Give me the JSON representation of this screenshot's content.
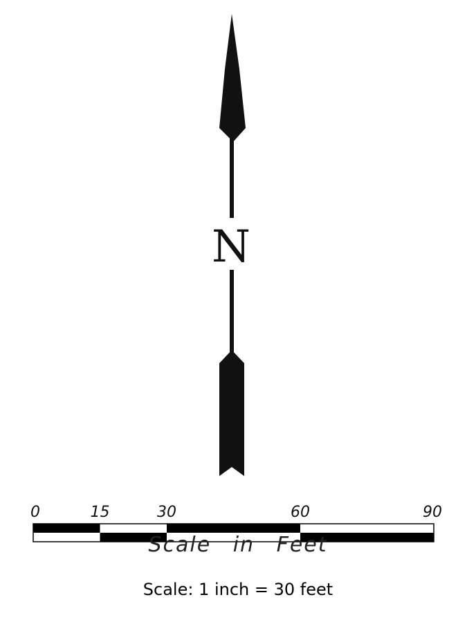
{
  "north_arrow": {
    "letter": "N",
    "icon": "north-arrow-icon",
    "color": "#111111"
  },
  "scale_bar": {
    "ticks": [
      {
        "label": "0",
        "value": 0
      },
      {
        "label": "15",
        "value": 15
      },
      {
        "label": "30",
        "value": 30
      },
      {
        "label": "60",
        "value": 60
      },
      {
        "label": "90",
        "value": 90
      }
    ],
    "max_value": 90,
    "unit_caption": "Scale in Feet",
    "fill_color": "#000000",
    "empty_color": "#ffffff"
  },
  "scale_text": "Scale: 1 inch = 30 feet"
}
